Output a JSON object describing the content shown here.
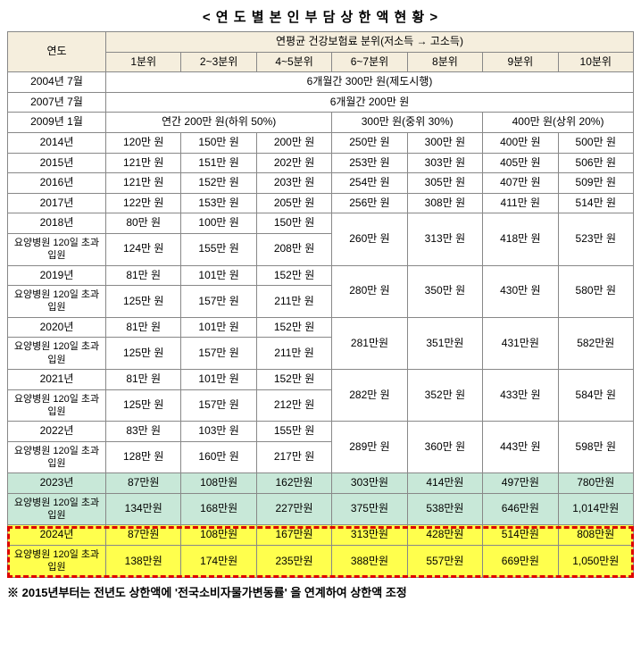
{
  "title": "< 연 도 별   본 인 부 담 상 한 액   현 황 >",
  "header": {
    "year": "연도",
    "group": "연평균 건강보험료 분위(저소득 → 고소득)",
    "cols": [
      "1분위",
      "2~3분위",
      "4~5분위",
      "6~7분위",
      "8분위",
      "9분위",
      "10분위"
    ]
  },
  "rows": {
    "r2004": {
      "label": "2004년 7월",
      "text": "6개월간 300만 원(제도시행)"
    },
    "r2007": {
      "label": "2007년 7월",
      "text": "6개월간 200만 원"
    },
    "r2009": {
      "label": "2009년 1월",
      "a": "연간 200만 원(하위 50%)",
      "b": "300만 원(중위 30%)",
      "c": "400만 원(상위 20%)"
    },
    "r2014": {
      "label": "2014년",
      "c": [
        "120만 원",
        "150만 원",
        "200만 원",
        "250만 원",
        "300만 원",
        "400만 원",
        "500만 원"
      ]
    },
    "r2015": {
      "label": "2015년",
      "c": [
        "121만 원",
        "151만 원",
        "202만 원",
        "253만 원",
        "303만 원",
        "405만 원",
        "506만 원"
      ]
    },
    "r2016": {
      "label": "2016년",
      "c": [
        "121만 원",
        "152만 원",
        "203만 원",
        "254만 원",
        "305만 원",
        "407만 원",
        "509만 원"
      ]
    },
    "r2017": {
      "label": "2017년",
      "c": [
        "122만 원",
        "153만 원",
        "205만 원",
        "256만 원",
        "308만 원",
        "411만 원",
        "514만 원"
      ]
    },
    "r2018a": {
      "label": "2018년",
      "c": [
        "80만 원",
        "100만 원",
        "150만 원"
      ]
    },
    "r2018b": {
      "label": "요양병원 120일 초과 입원",
      "c": [
        "124만 원",
        "155만 원",
        "208만 원"
      ]
    },
    "r2018m": [
      "260만 원",
      "313만 원",
      "418만 원",
      "523만 원"
    ],
    "r2019a": {
      "label": "2019년",
      "c": [
        "81만 원",
        "101만 원",
        "152만 원"
      ]
    },
    "r2019b": {
      "label": "요양병원 120일 초과 입원",
      "c": [
        "125만 원",
        "157만 원",
        "211만 원"
      ]
    },
    "r2019m": [
      "280만 원",
      "350만 원",
      "430만 원",
      "580만 원"
    ],
    "r2020a": {
      "label": "2020년",
      "c": [
        "81만 원",
        "101만 원",
        "152만 원"
      ]
    },
    "r2020b": {
      "label": "요양병원 120일 초과 입원",
      "c": [
        "125만 원",
        "157만 원",
        "211만 원"
      ]
    },
    "r2020m": [
      "281만원",
      "351만원",
      "431만원",
      "582만원"
    ],
    "r2021a": {
      "label": "2021년",
      "c": [
        "81만 원",
        "101만 원",
        "152만 원"
      ]
    },
    "r2021b": {
      "label": "요양병원 120일 초과 입원",
      "c": [
        "125만 원",
        "157만 원",
        "212만 원"
      ]
    },
    "r2021m": [
      "282만 원",
      "352만 원",
      "433만 원",
      "584만 원"
    ],
    "r2022a": {
      "label": "2022년",
      "c": [
        "83만 원",
        "103만 원",
        "155만 원"
      ]
    },
    "r2022b": {
      "label": "요양병원 120일 초과 입원",
      "c": [
        "128만 원",
        "160만 원",
        "217만 원"
      ]
    },
    "r2022m": [
      "289만 원",
      "360만 원",
      "443만 원",
      "598만 원"
    ],
    "r2023a": {
      "label": "2023년",
      "c": [
        "87만원",
        "108만원",
        "162만원",
        "303만원",
        "414만원",
        "497만원",
        "780만원"
      ]
    },
    "r2023b": {
      "label": "요양병원 120일 초과 입원",
      "c": [
        "134만원",
        "168만원",
        "227만원",
        "375만원",
        "538만원",
        "646만원",
        "1,014만원"
      ]
    },
    "r2024a": {
      "label": "2024년",
      "c": [
        "87만원",
        "108만원",
        "167만원",
        "313만원",
        "428만원",
        "514만원",
        "808만원"
      ]
    },
    "r2024b": {
      "label": "요양병원 120일 초과 입원",
      "c": [
        "138만원",
        "174만원",
        "235만원",
        "388만원",
        "557만원",
        "669만원",
        "1,050만원"
      ]
    }
  },
  "note": "※ 2015년부터는 전년도 상한액에 '전국소비자물가변동률' 을 연계하여 상한액 조정"
}
